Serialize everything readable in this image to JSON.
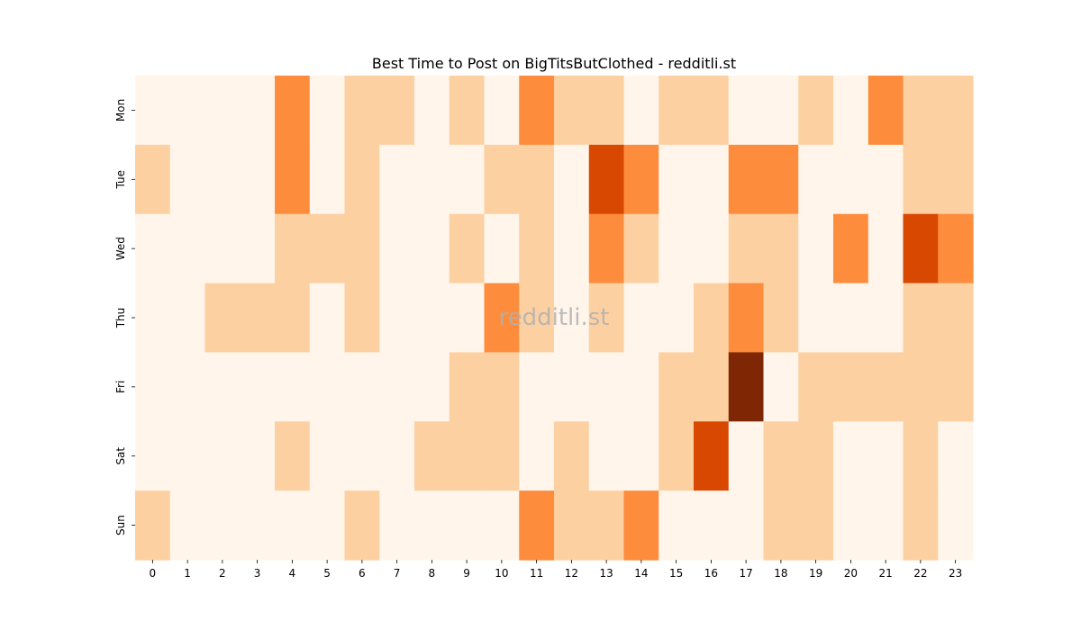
{
  "chart_data": {
    "type": "heatmap",
    "title": "Best Time to Post on BigTitsButClothed - redditli.st",
    "watermark": "redditli.st",
    "x_categories": [
      "0",
      "1",
      "2",
      "3",
      "4",
      "5",
      "6",
      "7",
      "8",
      "9",
      "10",
      "11",
      "12",
      "13",
      "14",
      "15",
      "16",
      "17",
      "18",
      "19",
      "20",
      "21",
      "22",
      "23"
    ],
    "y_categories": [
      "Mon",
      "Tue",
      "Wed",
      "Thu",
      "Fri",
      "Sat",
      "Sun"
    ],
    "values": [
      [
        0,
        0,
        0,
        0,
        2,
        0,
        1,
        1,
        0,
        1,
        0,
        2,
        1,
        1,
        0,
        1,
        1,
        0,
        0,
        1,
        0,
        2,
        1,
        1
      ],
      [
        1,
        0,
        0,
        0,
        2,
        0,
        1,
        0,
        0,
        0,
        1,
        1,
        0,
        3,
        2,
        0,
        0,
        2,
        2,
        0,
        0,
        0,
        1,
        1
      ],
      [
        0,
        0,
        0,
        0,
        1,
        1,
        1,
        0,
        0,
        1,
        0,
        1,
        0,
        2,
        1,
        0,
        0,
        1,
        1,
        0,
        2,
        0,
        3,
        2
      ],
      [
        0,
        0,
        1,
        1,
        1,
        0,
        1,
        0,
        0,
        0,
        2,
        1,
        0,
        1,
        0,
        0,
        1,
        2,
        1,
        0,
        0,
        0,
        1,
        1
      ],
      [
        0,
        0,
        0,
        0,
        0,
        0,
        0,
        0,
        0,
        1,
        1,
        0,
        0,
        0,
        0,
        1,
        1,
        4,
        0,
        1,
        1,
        1,
        1,
        1
      ],
      [
        0,
        0,
        0,
        0,
        1,
        0,
        0,
        0,
        1,
        1,
        1,
        0,
        1,
        0,
        0,
        1,
        3,
        0,
        1,
        1,
        0,
        0,
        1,
        0
      ],
      [
        1,
        0,
        0,
        0,
        0,
        0,
        1,
        0,
        0,
        0,
        0,
        2,
        1,
        1,
        2,
        0,
        0,
        0,
        1,
        1,
        0,
        0,
        1,
        0
      ]
    ],
    "colors": [
      "#fff5eb",
      "#fdd0a2",
      "#fd8d3c",
      "#d94801",
      "#7f2704"
    ],
    "colorbar": false
  }
}
